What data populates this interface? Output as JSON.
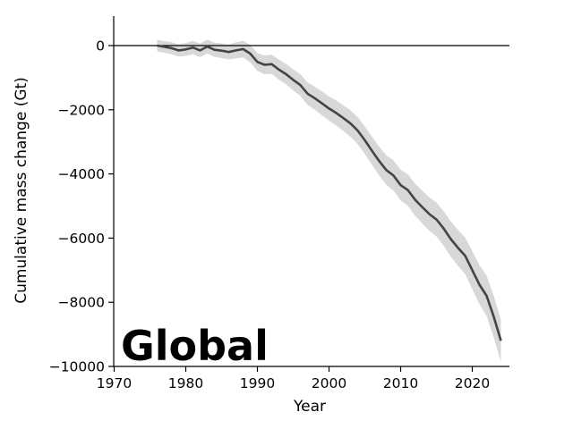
{
  "chart_data": {
    "type": "line",
    "region_label": "Global",
    "xlabel": "Year",
    "ylabel": "Cumulative mass change (Gt)",
    "xlim": [
      1969,
      2026
    ],
    "ylim": [
      -10000,
      300
    ],
    "xticks": [
      1970,
      1980,
      1990,
      2000,
      2010,
      2020
    ],
    "yticks": [
      0,
      -2000,
      -4000,
      -6000,
      -8000,
      -10000
    ],
    "ytick_labels": [
      "0",
      "−2000",
      "−4000",
      "−6000",
      "−8000",
      "−10000"
    ],
    "zero_line": true,
    "grid": false,
    "colors": {
      "line": "#444444",
      "band": "#d8d8d8",
      "zero_line": "#000000"
    },
    "series": [
      {
        "x": [
          1976,
          1977,
          1978,
          1979,
          1980,
          1981,
          1982,
          1983,
          1984,
          1985,
          1986,
          1987,
          1988,
          1989,
          1990,
          1991,
          1992,
          1993,
          1994,
          1995,
          1996,
          1997,
          1998,
          1999,
          2000,
          2001,
          2002,
          2003,
          2004,
          2005,
          2006,
          2007,
          2008,
          2009,
          2010,
          2011,
          2012,
          2013,
          2014,
          2015,
          2016,
          2017,
          2018,
          2019,
          2020,
          2021,
          2022,
          2023,
          2024
        ],
        "y": [
          0,
          -40,
          -80,
          -150,
          -120,
          -60,
          -150,
          -30,
          -130,
          -160,
          -200,
          -150,
          -110,
          -250,
          -510,
          -600,
          -580,
          -750,
          -890,
          -1070,
          -1230,
          -1500,
          -1640,
          -1800,
          -1960,
          -2100,
          -2260,
          -2430,
          -2650,
          -2950,
          -3280,
          -3600,
          -3880,
          -4050,
          -4350,
          -4500,
          -4800,
          -5030,
          -5250,
          -5420,
          -5700,
          -6030,
          -6300,
          -6550,
          -7000,
          -7450,
          -7800,
          -8450,
          -9200
        ],
        "lower": [
          -180,
          -220,
          -270,
          -340,
          -320,
          -270,
          -360,
          -250,
          -350,
          -390,
          -430,
          -400,
          -370,
          -520,
          -790,
          -890,
          -880,
          -1060,
          -1210,
          -1400,
          -1570,
          -1850,
          -2000,
          -2170,
          -2340,
          -2490,
          -2660,
          -2840,
          -3070,
          -3380,
          -3720,
          -4050,
          -4340,
          -4520,
          -4830,
          -4990,
          -5300,
          -5540,
          -5770,
          -5950,
          -6240,
          -6580,
          -6860,
          -7120,
          -7590,
          -8060,
          -8430,
          -9100,
          -9850
        ],
        "upper": [
          180,
          140,
          110,
          40,
          80,
          150,
          60,
          190,
          90,
          70,
          30,
          100,
          150,
          20,
          -230,
          -310,
          -280,
          -440,
          -570,
          -740,
          -890,
          -1150,
          -1280,
          -1430,
          -1580,
          -1710,
          -1860,
          -2020,
          -2230,
          -2520,
          -2840,
          -3150,
          -3420,
          -3580,
          -3870,
          -4010,
          -4300,
          -4520,
          -4730,
          -4890,
          -5160,
          -5480,
          -5740,
          -5980,
          -6410,
          -6840,
          -7170,
          -7800,
          -8550
        ]
      }
    ]
  }
}
